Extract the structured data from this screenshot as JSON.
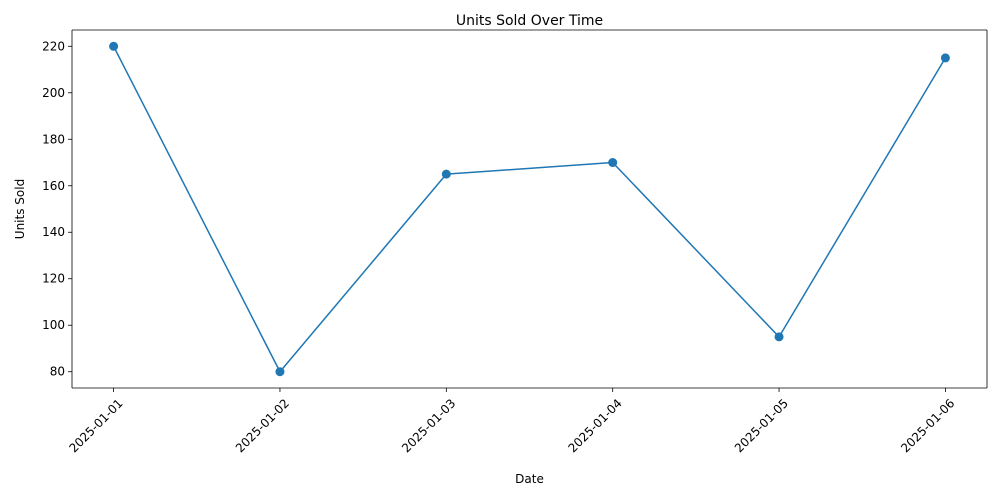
{
  "chart_data": {
    "type": "line",
    "title": "Units Sold Over Time",
    "xlabel": "Date",
    "ylabel": "Units Sold",
    "categories": [
      "2025-01-01",
      "2025-01-02",
      "2025-01-03",
      "2025-01-04",
      "2025-01-05",
      "2025-01-06"
    ],
    "series": [
      {
        "values": [
          220,
          80,
          165,
          170,
          95,
          215
        ]
      }
    ],
    "yticks": [
      80,
      100,
      120,
      140,
      160,
      180,
      200,
      220
    ],
    "ylim": [
      73,
      227
    ],
    "grid": false,
    "legend": "none",
    "line_color": "#1f77b4",
    "marker": "circle"
  }
}
